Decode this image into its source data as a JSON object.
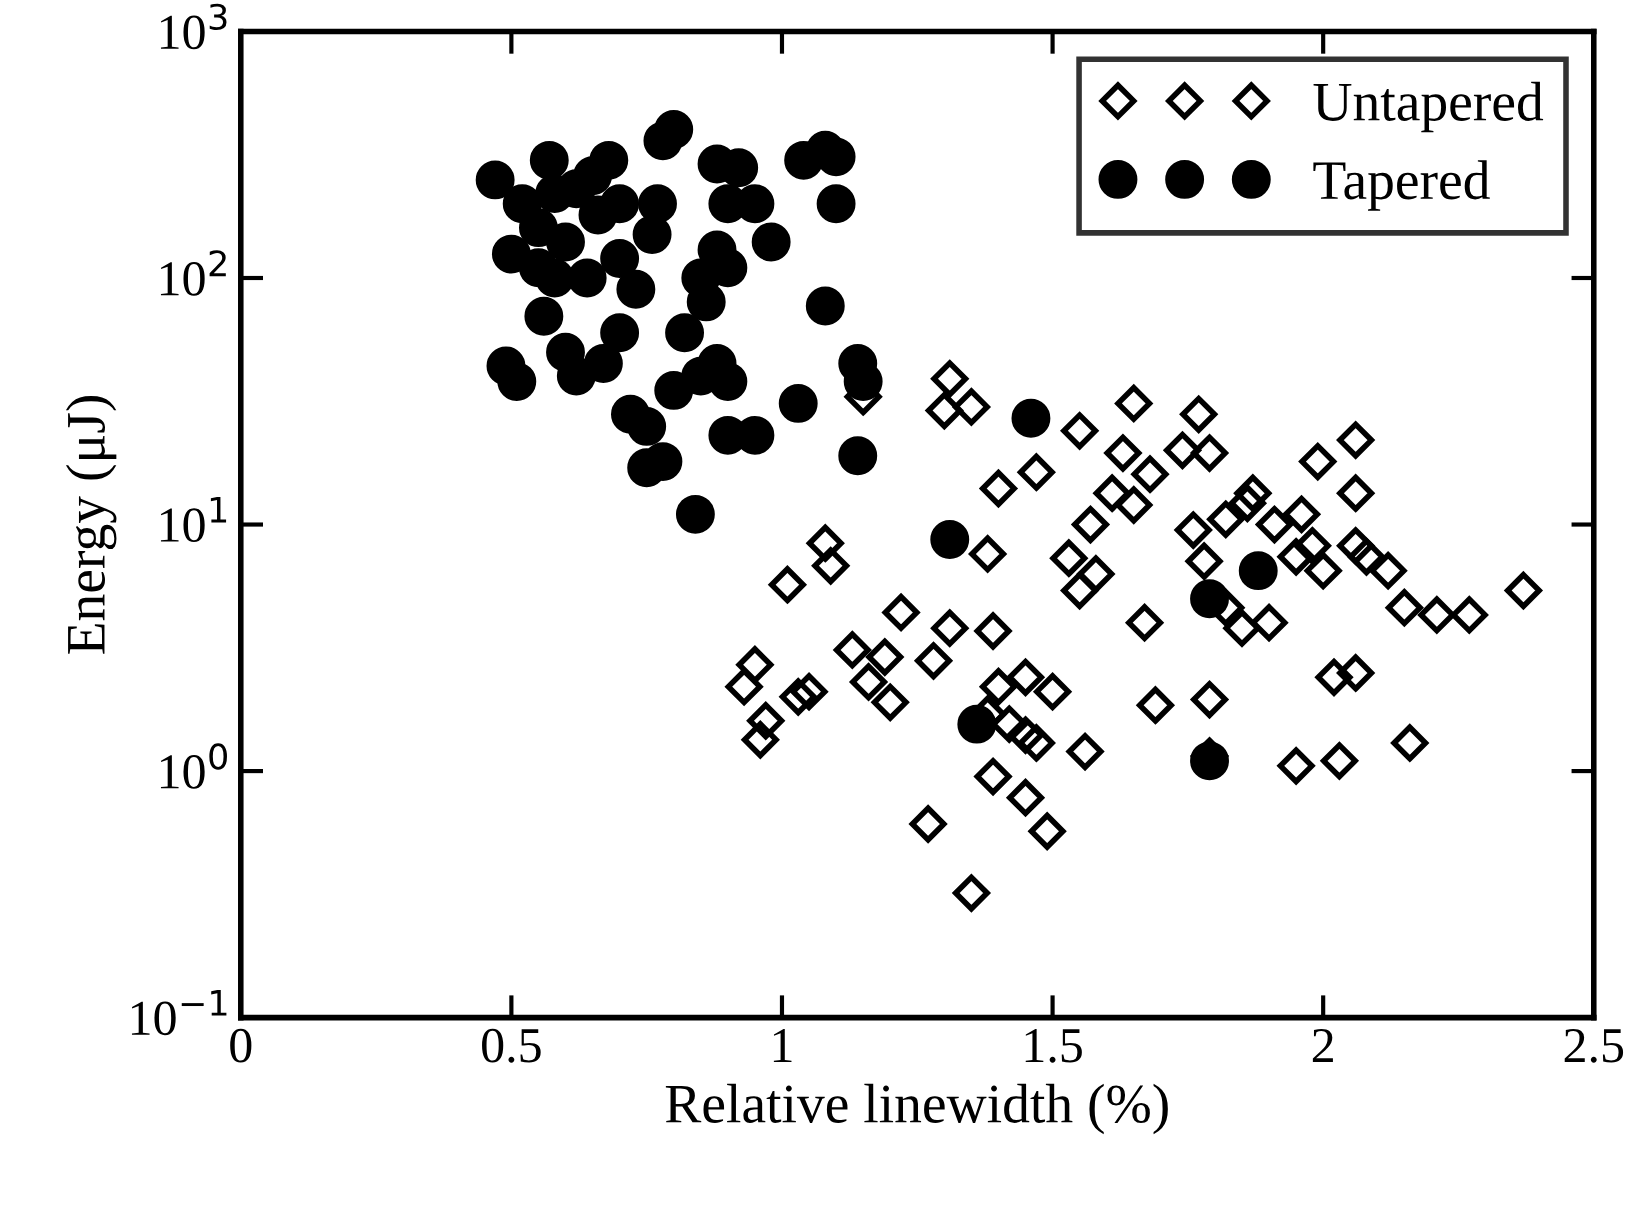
{
  "chart_data": {
    "type": "scatter",
    "xlabel": "Relative linewidth (%)",
    "ylabel": "Energy (μJ)",
    "xlim": [
      0,
      2.5
    ],
    "xticks": [
      0,
      0.5,
      1,
      1.5,
      2,
      2.5
    ],
    "ylim": [
      0.1,
      1000
    ],
    "log": "y",
    "yticks": [
      {
        "value": 0.1,
        "label": "10$^{−1}$"
      },
      {
        "value": 1,
        "label": "10$^{0}$"
      },
      {
        "value": 10,
        "label": "10$^{1}$"
      },
      {
        "value": 100,
        "label": "10$^{2}$"
      },
      {
        "value": 1000,
        "label": "10$^{3}$"
      }
    ],
    "grid": false,
    "legend": "top right",
    "series": [
      {
        "name": "Untapered",
        "color": "#000000",
        "marker": "diamond",
        "x": [
          1.15,
          1.31,
          1.3,
          1.35,
          1.4,
          1.47,
          1.55,
          1.65,
          1.63,
          1.68,
          1.77,
          1.79,
          1.74,
          1.61,
          1.65,
          1.57,
          1.53,
          1.55,
          1.58,
          1.38,
          1.76,
          1.78,
          1.82,
          1.86,
          1.87,
          1.91,
          1.96,
          1.99,
          2.06,
          2.06,
          1.98,
          2.0,
          2.06,
          2.08,
          2.12,
          2.15,
          2.21,
          2.27,
          2.37,
          1.95,
          1.82,
          1.85,
          1.9,
          1.67,
          2.02,
          2.06,
          1.79,
          1.69,
          1.56,
          1.95,
          2.03,
          2.16,
          1.79,
          1.08,
          1.09,
          1.01,
          1.22,
          1.13,
          1.19,
          1.28,
          1.31,
          1.39,
          0.95,
          0.93,
          0.97,
          0.96,
          1.03,
          1.05,
          1.16,
          1.2,
          1.4,
          1.45,
          1.5,
          1.38,
          1.42,
          1.45,
          1.47,
          1.39,
          1.45,
          1.49,
          1.27,
          1.35
        ],
        "values": [
          33,
          39,
          29,
          30,
          14,
          16.3,
          24,
          31,
          19.5,
          16,
          28,
          19.5,
          20,
          13.4,
          12,
          10,
          7.3,
          5.4,
          6.3,
          7.6,
          9.5,
          7.1,
          10.5,
          12.2,
          13.4,
          10,
          11,
          18,
          22,
          13.4,
          8.2,
          6.5,
          8.2,
          7.4,
          6.5,
          4.6,
          4.3,
          4.3,
          5.4,
          7.4,
          4.6,
          3.8,
          4.0,
          4.0,
          2.4,
          2.5,
          1.95,
          1.85,
          1.2,
          1.05,
          1.1,
          1.3,
          1.15,
          8.4,
          6.8,
          5.7,
          4.4,
          3.1,
          2.9,
          2.8,
          3.8,
          3.7,
          2.7,
          2.2,
          1.6,
          1.34,
          2.0,
          2.1,
          2.3,
          1.9,
          2.2,
          2.4,
          2.1,
          1.7,
          1.55,
          1.4,
          1.3,
          0.95,
          0.78,
          0.57,
          0.61,
          0.32
        ]
      },
      {
        "name": "Tapered",
        "color": "#000000",
        "marker": "circle",
        "x": [
          0.47,
          0.49,
          0.51,
          0.5,
          0.52,
          0.55,
          0.57,
          0.58,
          0.6,
          0.56,
          0.6,
          0.62,
          0.58,
          0.65,
          0.66,
          0.68,
          0.7,
          0.7,
          0.67,
          0.72,
          0.75,
          0.75,
          0.78,
          0.73,
          0.76,
          0.78,
          0.8,
          0.77,
          0.8,
          0.82,
          0.84,
          0.85,
          0.88,
          0.86,
          0.88,
          0.9,
          0.9,
          0.92,
          0.95,
          0.98,
          0.9,
          0.95,
          0.88,
          0.9,
          1.04,
          1.08,
          1.1,
          1.1,
          1.08,
          1.03,
          1.14,
          1.15,
          1.14,
          1.46,
          1.31,
          1.88,
          1.79,
          1.36,
          1.79,
          0.64,
          0.7,
          0.62,
          0.55,
          0.85
        ],
        "values": [
          250,
          44,
          38,
          125,
          200,
          160,
          300,
          220,
          140,
          70,
          50,
          40,
          100,
          260,
          180,
          300,
          120,
          60,
          45,
          28,
          25,
          17,
          18,
          90,
          150,
          360,
          400,
          200,
          35,
          60,
          11,
          40,
          290,
          80,
          130,
          200,
          110,
          280,
          200,
          140,
          23,
          23,
          45,
          38,
          300,
          330,
          310,
          200,
          77,
          31,
          45,
          38,
          19,
          27,
          8.7,
          6.5,
          5,
          1.55,
          1.1,
          100,
          200,
          230,
          110,
          100
        ]
      }
    ]
  }
}
